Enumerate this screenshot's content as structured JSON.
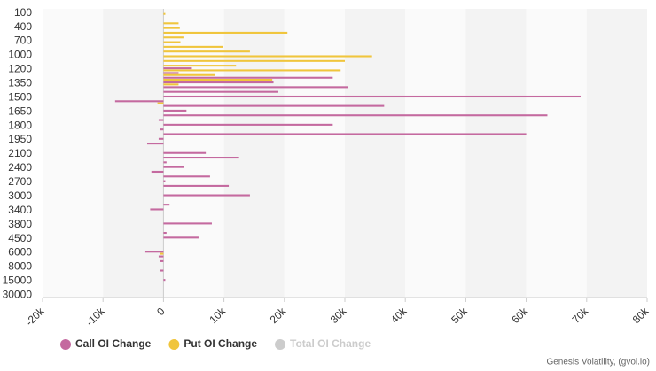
{
  "chart_data": {
    "type": "hbar",
    "categories": [
      "100",
      null,
      null,
      "400",
      null,
      null,
      "700",
      null,
      null,
      "1000",
      null,
      null,
      "1200",
      null,
      null,
      "1350",
      null,
      null,
      "1500",
      null,
      null,
      "1650",
      null,
      null,
      "1800",
      null,
      null,
      "1950",
      null,
      null,
      "2100",
      null,
      null,
      "2400",
      null,
      null,
      "2700",
      null,
      null,
      "3000",
      null,
      null,
      "3400",
      null,
      null,
      "3800",
      null,
      null,
      "4500",
      null,
      null,
      "6000",
      null,
      null,
      "8000",
      null,
      null,
      "15000",
      null,
      null,
      "30000"
    ],
    "series": [
      {
        "name": "Call OI Change",
        "color": "#c4699f",
        "values": [
          null,
          null,
          null,
          null,
          null,
          null,
          null,
          null,
          null,
          null,
          null,
          null,
          4700,
          2500,
          28000,
          18200,
          30500,
          19000,
          69000,
          -8000,
          36500,
          3800,
          63500,
          -800,
          28000,
          -500,
          60000,
          -800,
          -2700,
          null,
          7000,
          12500,
          500,
          3400,
          -2000,
          7700,
          300,
          10800,
          null,
          14300,
          null,
          1000,
          -2200,
          null,
          null,
          8000,
          null,
          500,
          5800,
          null,
          null,
          -3000,
          -800,
          -500,
          null,
          -600,
          null,
          300,
          null,
          null,
          null
        ]
      },
      {
        "name": "Put OI Change",
        "color": "#f0c53c",
        "values": [
          300,
          null,
          2500,
          2700,
          20500,
          3300,
          2800,
          9800,
          14300,
          34500,
          30000,
          12000,
          29300,
          8500,
          18000,
          2500,
          null,
          null,
          null,
          -1000,
          null,
          null,
          null,
          null,
          null,
          null,
          null,
          null,
          null,
          null,
          null,
          null,
          null,
          null,
          null,
          null,
          null,
          null,
          null,
          null,
          null,
          null,
          null,
          null,
          null,
          null,
          null,
          null,
          null,
          null,
          null,
          -500,
          null,
          null,
          null,
          null,
          null,
          null,
          null,
          null,
          null
        ]
      },
      {
        "name": "Total OI Change",
        "color": "#cccccc",
        "hidden": true
      }
    ],
    "xlim": [
      -20000,
      80000
    ],
    "xticks": [
      {
        "value": -20000,
        "label": "-20k"
      },
      {
        "value": -10000,
        "label": "-10k"
      },
      0,
      {
        "value": 10000,
        "label": "10k"
      },
      {
        "value": 20000,
        "label": "20k"
      },
      {
        "value": 30000,
        "label": "30k"
      },
      {
        "value": 40000,
        "label": "40k"
      },
      {
        "value": 50000,
        "label": "50k"
      },
      {
        "value": 60000,
        "label": "60k"
      },
      {
        "value": 70000,
        "label": "70k"
      },
      {
        "value": 80000,
        "label": "80k"
      }
    ],
    "grid": true,
    "credit": "Genesis Volatility, (gvol.io)"
  }
}
